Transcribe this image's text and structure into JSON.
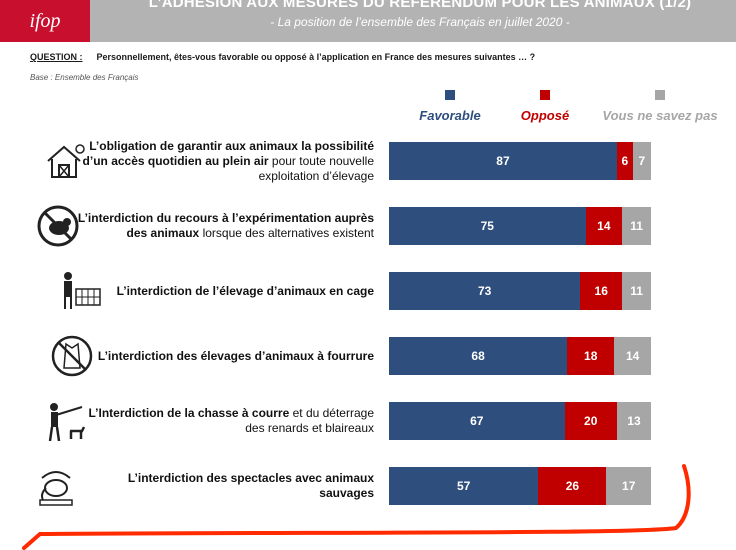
{
  "header": {
    "logo_text": "ifop",
    "title": "L’ADHÉSION AUX MESURES DU RÉFÉRENDUM POUR LES ANIMAUX (1/2)",
    "subtitle": "- La position de l’ensemble des Français en juillet 2020 -"
  },
  "question": {
    "label": "QUESTION :",
    "text": "Personnellement, êtes-vous favorable ou opposé à l’application en France des mesures suivantes … ?"
  },
  "base_text": "Base : Ensemble des Français",
  "colors": {
    "favorable": "#2e4e7e",
    "oppose": "#c00000",
    "nsp": "#a6a6a6",
    "annotation": "#ff2a00"
  },
  "icons": [
    "farm-barn-icon",
    "no-animal-testing-icon",
    "farmer-with-cages-icon",
    "no-fur-coat-icon",
    "hunter-with-dog-icon",
    "circus-elephant-icon"
  ],
  "chart_data": {
    "type": "bar",
    "stacked": true,
    "orientation": "horizontal",
    "categories": [
      "L’obligation de garantir aux animaux la possibilité d’un accès quotidien au plein air pour toute nouvelle exploitation d’élevage",
      "L’interdiction du recours à l’expérimentation auprès des animaux lorsque des alternatives existent",
      "L’interdiction de l’élevage d’animaux en cage",
      "L’interdiction des élevages d’animaux à fourrure",
      "L’Interdiction de la chasse à courre et du déterrage des renards et blaireaux",
      "L’interdiction des spectacles avec animaux sauvages"
    ],
    "series": [
      {
        "name": "Favorable",
        "values": [
          87,
          75,
          73,
          68,
          67,
          57
        ]
      },
      {
        "name": "Opposé",
        "values": [
          6,
          14,
          16,
          18,
          20,
          26
        ]
      },
      {
        "name": "Vous ne savez pas",
        "values": [
          7,
          11,
          11,
          14,
          13,
          17
        ]
      }
    ],
    "legend_position": "top"
  },
  "rows": [
    {
      "bold": "L’obligation de garantir aux animaux la possibilité d’un accès quotidien au plein air",
      "rest": " pour toute nouvelle exploitation d’élevage"
    },
    {
      "bold": "L’interdiction du recours à l’expérimentation auprès des animaux",
      "rest": " lorsque des alternatives existent"
    },
    {
      "bold": "L’interdiction de l’élevage d’animaux en cage",
      "rest": ""
    },
    {
      "bold": "L’interdiction des élevages d’animaux à fourrure",
      "rest": ""
    },
    {
      "bold": "L’Interdiction de la chasse à courre",
      "rest": " et du déterrage des renards et blaireaux"
    },
    {
      "bold": "L’interdiction des spectacles avec animaux sauvages",
      "rest": ""
    }
  ]
}
